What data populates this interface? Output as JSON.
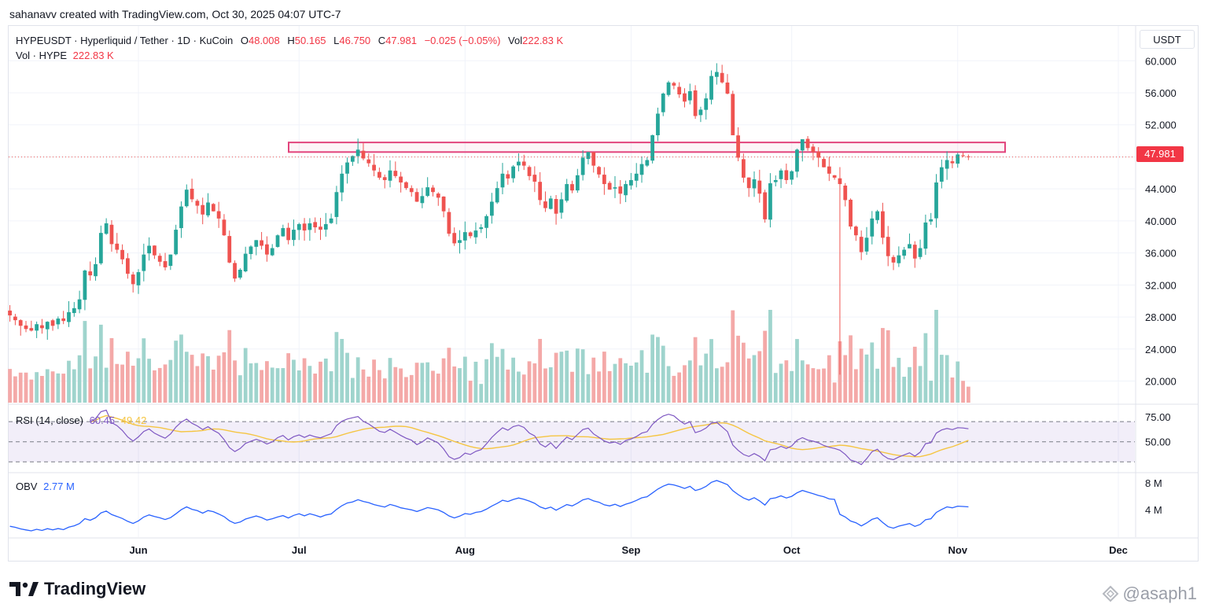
{
  "header": {
    "caption": "sahanavv created with TradingView.com, Oct 30, 2025 04:07 UTC-7"
  },
  "legend": {
    "symbol": "HYPEUSDT · Hyperliquid / Tether · 1D · KuCoin",
    "o_label": "O",
    "o_value": "48.008",
    "h_label": "H",
    "h_value": "50.165",
    "l_label": "L",
    "l_value": "46.750",
    "c_label": "C",
    "c_value": "47.981",
    "change": "−0.025 (−0.05%)",
    "vol_label": "Vol",
    "vol_value": "222.83 K",
    "vol_row_label": "Vol · HYPE",
    "vol_row_value": "222.83 K"
  },
  "currency": "USDT",
  "last_price_tag": "47.981",
  "rsi": {
    "label": "RSI (14, close)",
    "value": "60.45",
    "ma_value": "49.42"
  },
  "obv": {
    "label": "OBV",
    "value": "2.77 M"
  },
  "brand": {
    "name": "TradingView"
  },
  "watermark": "@asaph1",
  "colors": {
    "up": "#26a69a",
    "down": "#ef5350",
    "up_vol": "#9fd4cd",
    "down_vol": "#f4a9a8",
    "rsi": "#7e57c2",
    "rsi_ma": "#f5c542",
    "obv": "#2962ff",
    "resistance": "#e2447c"
  },
  "chart_data": {
    "type": "candlestick",
    "symbol": "HYPEUSDT",
    "interval": "1D",
    "price_axis": {
      "ticks": [
        "60.000",
        "56.000",
        "52.000",
        "48.000",
        "44.000",
        "40.000",
        "36.000",
        "32.000",
        "28.000",
        "24.000",
        "20.000"
      ],
      "range": [
        17.3,
        61.5
      ]
    },
    "x_axis": {
      "labels": [
        "Jun",
        "Jul",
        "Aug",
        "Sep",
        "Oct",
        "Nov",
        "Dec"
      ],
      "label_dates": [
        "2025-06-01",
        "2025-07-01",
        "2025-08-01",
        "2025-09-01",
        "2025-10-01",
        "2025-11-01",
        "2025-12-01"
      ]
    },
    "resistance_zone": {
      "low": 48.6,
      "high": 49.8
    },
    "last_price": 47.981,
    "close_series": {
      "start_date": "2025-05-08",
      "values": [
        28.2,
        27.6,
        26.9,
        26.5,
        26.3,
        27.1,
        26.6,
        27.4,
        26.9,
        27.8,
        27.5,
        28.6,
        29.1,
        30.2,
        33.8,
        33.2,
        34.6,
        38.5,
        39.7,
        37.1,
        36.4,
        35.2,
        33.4,
        32.1,
        33.6,
        35.8,
        36.9,
        35.7,
        34.9,
        34.2,
        35.8,
        38.9,
        41.8,
        43.9,
        42.7,
        41.9,
        40.8,
        42.3,
        41.2,
        40.3,
        38.2,
        34.8,
        32.8,
        33.9,
        35.9,
        36.8,
        37.6,
        36.9,
        35.8,
        36.6,
        38.2,
        39.1,
        37.6,
        38.9,
        39.6,
        38.8,
        39.7,
        39.2,
        38.9,
        39.6,
        40.3,
        43.6,
        45.9,
        47.3,
        48.1,
        48.9,
        47.8,
        47.2,
        46.3,
        45.4,
        45.1,
        46.3,
        45.6,
        44.8,
        44.1,
        43.6,
        42.4,
        43.1,
        44.2,
        43.6,
        42.9,
        41.2,
        38.4,
        37.2,
        37.6,
        38.6,
        38.1,
        38.8,
        39.2,
        40.6,
        42.4,
        44.1,
        45.9,
        45.3,
        46.8,
        47.4,
        46.9,
        45.6,
        44.9,
        42.6,
        41.6,
        42.8,
        40.9,
        42.7,
        44.6,
        43.8,
        45.7,
        47.9,
        48.6,
        46.9,
        45.8,
        44.6,
        43.9,
        44.2,
        43.4,
        44.6,
        45.1,
        45.9,
        47.1,
        47.6,
        50.7,
        53.4,
        55.9,
        57.3,
        56.9,
        55.8,
        54.9,
        56.2,
        53.1,
        53.9,
        55.3,
        58.1,
        58.6,
        57.3,
        55.9,
        50.7,
        47.9,
        45.4,
        44.1,
        45.2,
        43.4,
        40.2,
        44.7,
        45.1,
        46.3,
        45.1,
        46.2,
        48.9,
        50.2,
        49.1,
        48.6,
        47.9,
        46.7,
        45.9,
        45.4,
        44.6,
        42.6,
        39.3,
        38.2,
        36.1,
        37.9,
        40.3,
        41.2,
        37.9,
        35.6,
        34.8,
        35.7,
        36.4,
        37.1,
        35.3,
        36.6,
        39.8,
        40.2,
        44.8,
        46.7,
        47.6,
        47.2,
        48.3,
        48.2,
        47.98
      ]
    },
    "volume_axis": {
      "ticks": [],
      "note": "relative volume bars"
    },
    "rsi": {
      "levels": [
        "75.00",
        "50.00"
      ],
      "upper_band": 70,
      "lower_band": 30,
      "current": 60.45,
      "ma_current": 49.42
    },
    "obv": {
      "ticks": [
        "8 M",
        "4 M"
      ],
      "current": 2.77
    }
  }
}
